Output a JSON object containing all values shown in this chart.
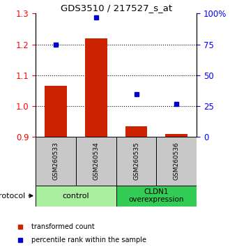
{
  "title": "GDS3510 / 217527_s_at",
  "samples": [
    "GSM260533",
    "GSM260534",
    "GSM260535",
    "GSM260536"
  ],
  "red_values": [
    1.065,
    1.22,
    0.935,
    0.91
  ],
  "blue_values_pct": [
    75,
    97,
    35,
    27
  ],
  "ylim_left": [
    0.9,
    1.3
  ],
  "ylim_right": [
    0,
    100
  ],
  "left_ticks": [
    0.9,
    1.0,
    1.1,
    1.2,
    1.3
  ],
  "dotted_ticks": [
    1.0,
    1.1,
    1.2
  ],
  "right_ticks": [
    0,
    25,
    50,
    75,
    100
  ],
  "right_tick_labels": [
    "0",
    "25",
    "50",
    "75",
    "100%"
  ],
  "groups": [
    {
      "label": "control",
      "color": "#AAEEA0"
    },
    {
      "label": "CLDN1\noverexpression",
      "color": "#33CC55"
    }
  ],
  "bar_color": "#CC2200",
  "dot_color": "#0000CC",
  "bar_base": 0.9,
  "sample_box_color": "#C8C8C8",
  "protocol_label": "protocol"
}
